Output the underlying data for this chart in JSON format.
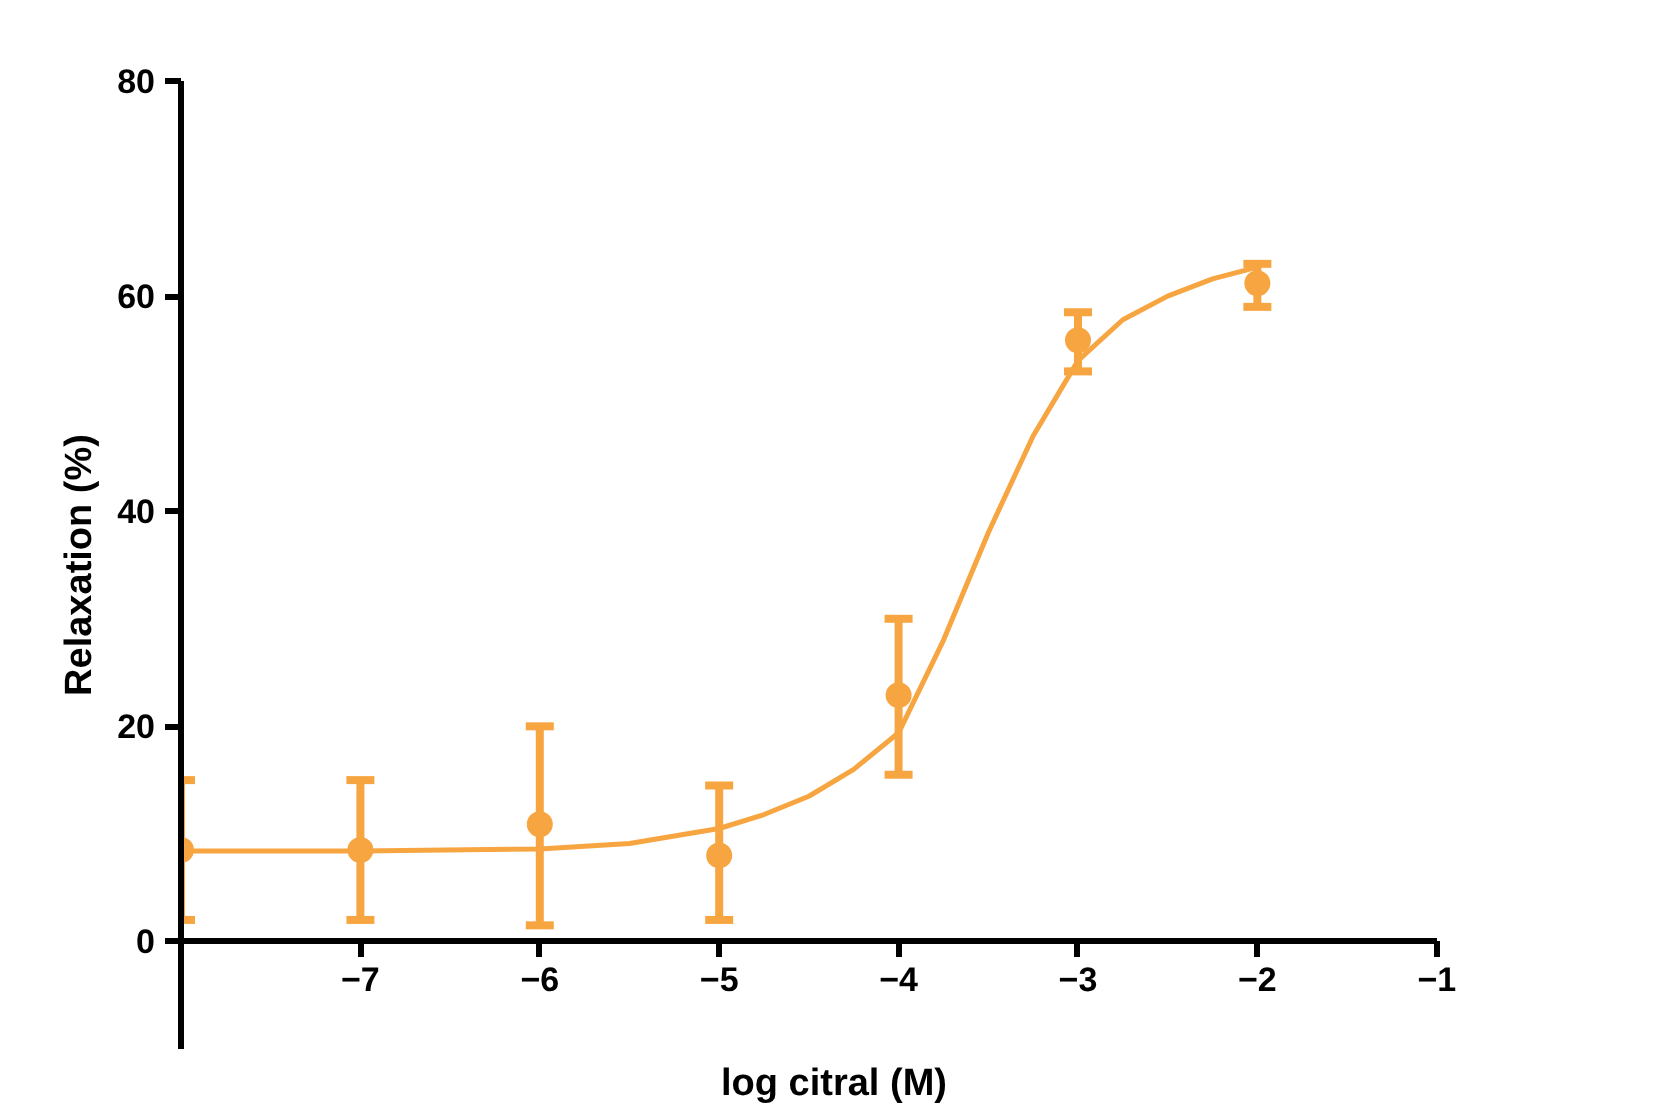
{
  "chart_data": {
    "type": "scatter",
    "xlabel": "log citral (M)",
    "ylabel": "Relaxation (%)",
    "xlim": [
      -8,
      -1
    ],
    "xticks": [
      -7,
      -6,
      -5,
      -4,
      -3,
      -2,
      -1
    ],
    "ylim": [
      -10,
      80
    ],
    "yticks": [
      0,
      20,
      40,
      60,
      80
    ],
    "grid": false,
    "series": [
      {
        "marker": "circle",
        "color": "#f7a541",
        "x": [
          -8,
          -7,
          -6,
          -5,
          -4,
          -3,
          -2
        ],
        "values": [
          8.5,
          8.5,
          10.9,
          8,
          22.9,
          55.9,
          61.2
        ],
        "errors": [
          [
            2,
            15
          ],
          [
            2,
            15
          ],
          [
            1.5,
            20
          ],
          [
            2,
            14.5
          ],
          [
            15.5,
            30
          ],
          [
            53,
            58.5
          ],
          [
            59,
            63
          ]
        ]
      },
      {
        "type": "line",
        "color": "#f7a541",
        "line_style": "solid",
        "x": [
          -8,
          -7,
          -6,
          -5.5,
          -5,
          -4.75,
          -4.5,
          -4.25,
          -4,
          -3.75,
          -3.5,
          -3.25,
          -3,
          -2.75,
          -2.5,
          -2.25,
          -2
        ],
        "values": [
          8.4,
          8.4,
          8.6,
          9.1,
          10.5,
          11.8,
          13.5,
          16,
          19.4,
          28,
          38,
          47,
          54,
          57.8,
          60,
          61.6,
          62.7
        ]
      }
    ]
  }
}
